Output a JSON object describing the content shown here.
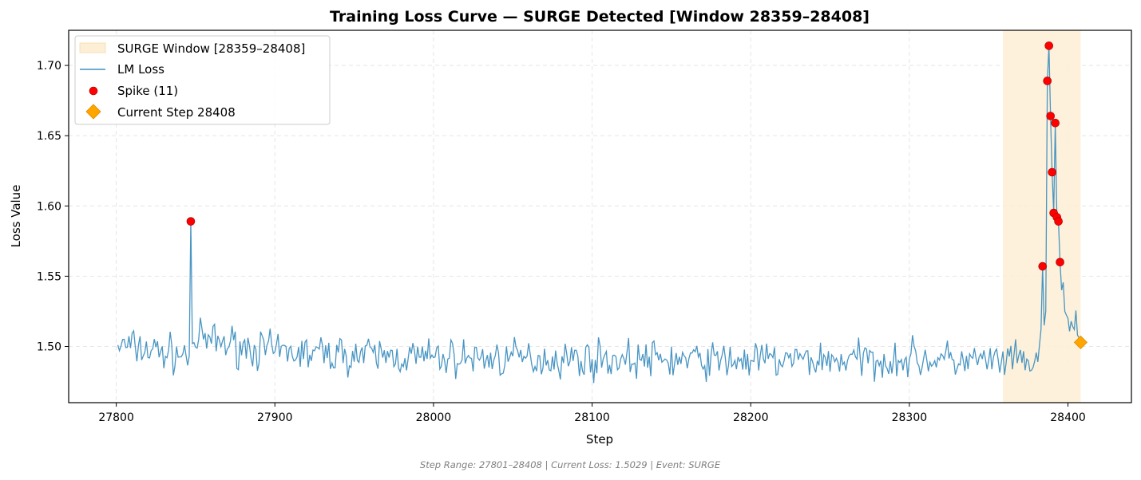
{
  "chart_data": {
    "type": "line",
    "title": "Training Loss Curve — SURGE Detected [Window 28359–28408]",
    "xlabel": "Step",
    "ylabel": "Loss Value",
    "xlim": [
      27770,
      28440
    ],
    "ylim": [
      1.46,
      1.725
    ],
    "x_ticks": [
      27800,
      27900,
      28000,
      28100,
      28200,
      28300,
      28400
    ],
    "y_ticks": [
      1.5,
      1.55,
      1.6,
      1.65,
      1.7
    ],
    "grid": true,
    "legend_position": "top-left",
    "colors": {
      "line": "#3f8fc0",
      "window": "#fdefd5",
      "spike": "#ff0000",
      "current": "#ffa500"
    },
    "legend": [
      {
        "label": "SURGE Window [28359–28408]",
        "kind": "rect"
      },
      {
        "label": "LM Loss",
        "kind": "line"
      },
      {
        "label": "Spike (11)",
        "kind": "dot"
      },
      {
        "label": "Current Step 28408",
        "kind": "diamond"
      }
    ],
    "surge_window": [
      28359,
      28408
    ],
    "series": [
      {
        "name": "LM Loss",
        "step_start": 27801,
        "step_end": 28408,
        "baseline": 1.493,
        "noise": 0.006,
        "anchors": [
          [
            27801,
            1.501
          ],
          [
            27846,
            1.493
          ],
          [
            27847,
            1.589
          ],
          [
            27848,
            1.502
          ],
          [
            27855,
            1.505
          ],
          [
            27900,
            1.496
          ],
          [
            28000,
            1.492
          ],
          [
            28100,
            1.491
          ],
          [
            28200,
            1.49
          ],
          [
            28300,
            1.491
          ],
          [
            28358,
            1.489
          ],
          [
            28381,
            1.489
          ],
          [
            28383,
            1.512
          ],
          [
            28384,
            1.557
          ],
          [
            28385,
            1.515
          ],
          [
            28386,
            1.525
          ],
          [
            28387,
            1.689
          ],
          [
            28388,
            1.714
          ],
          [
            28389,
            1.664
          ],
          [
            28390,
            1.624
          ],
          [
            28391,
            1.595
          ],
          [
            28392,
            1.659
          ],
          [
            28393,
            1.592
          ],
          [
            28394,
            1.589
          ],
          [
            28395,
            1.56
          ],
          [
            28396,
            1.54
          ],
          [
            28398,
            1.525
          ],
          [
            28400,
            1.52
          ],
          [
            28402,
            1.518
          ],
          [
            28404,
            1.512
          ],
          [
            28406,
            1.508
          ],
          [
            28408,
            1.503
          ]
        ]
      }
    ],
    "spikes": [
      {
        "x": 27847,
        "y": 1.589
      },
      {
        "x": 28384,
        "y": 1.557
      },
      {
        "x": 28387,
        "y": 1.689
      },
      {
        "x": 28388,
        "y": 1.714
      },
      {
        "x": 28389,
        "y": 1.664
      },
      {
        "x": 28390,
        "y": 1.624
      },
      {
        "x": 28391,
        "y": 1.595
      },
      {
        "x": 28392,
        "y": 1.659
      },
      {
        "x": 28393,
        "y": 1.592
      },
      {
        "x": 28394,
        "y": 1.589
      },
      {
        "x": 28395,
        "y": 1.56
      }
    ],
    "current": {
      "x": 28408,
      "y": 1.5029
    },
    "footer": "Step Range: 27801–28408 | Current Loss: 1.5029 | Event: SURGE"
  }
}
